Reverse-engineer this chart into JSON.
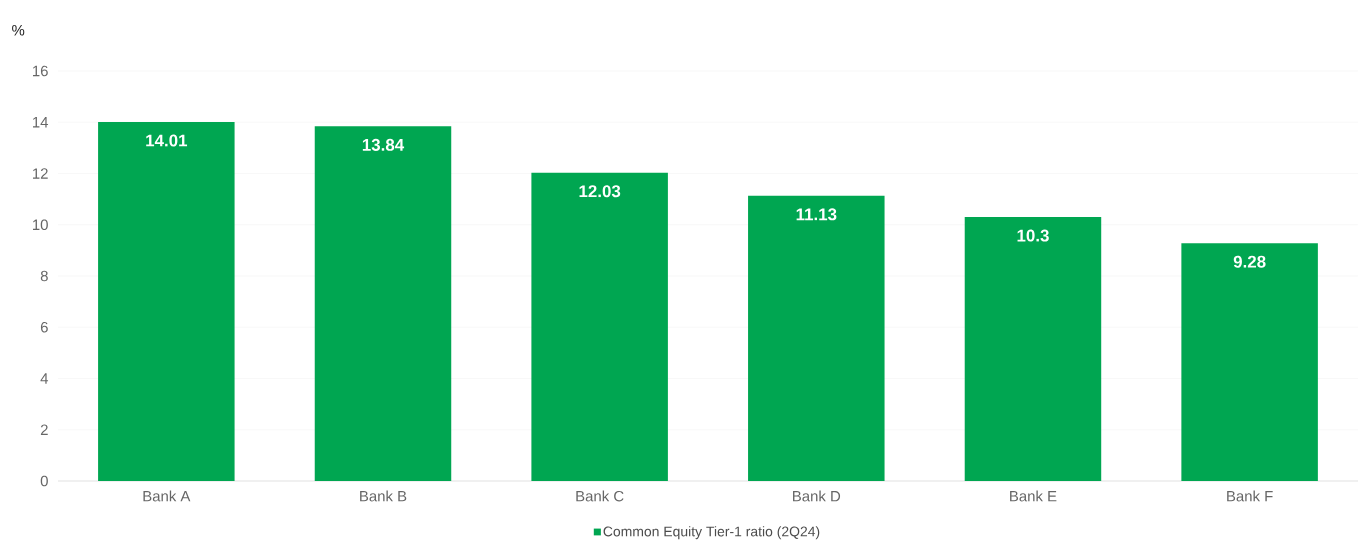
{
  "chart_data": {
    "type": "bar",
    "ylabel": "%",
    "categories": [
      "Bank A",
      "Bank B",
      "Bank C",
      "Bank D",
      "Bank E",
      "Bank F"
    ],
    "series": [
      {
        "name": "Common Equity Tier-1 ratio (2Q24)",
        "color": "#00a651",
        "values": [
          14.01,
          13.84,
          12.03,
          11.13,
          10.3,
          9.28
        ]
      }
    ],
    "ylim": [
      0,
      16
    ],
    "yticks": [
      0,
      2,
      4,
      6,
      8,
      10,
      12,
      14,
      16
    ],
    "grid": "y",
    "legend": "bottom",
    "data_labels": true
  }
}
